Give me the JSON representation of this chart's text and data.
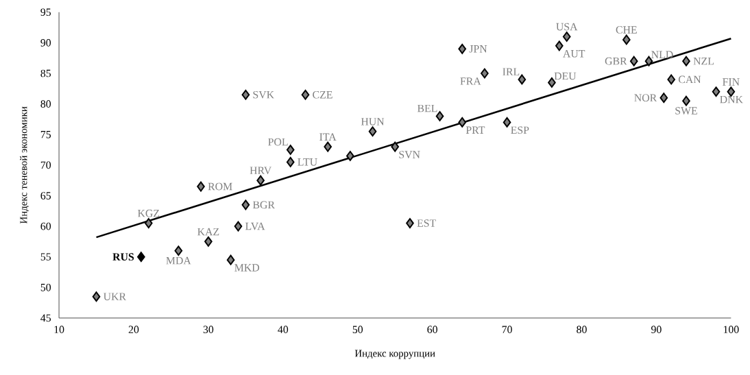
{
  "chart_data": {
    "type": "scatter",
    "marker": "diamond",
    "xlabel": "Индекс коррупции",
    "ylabel": "Индекс теневой экономики",
    "xlim": [
      10,
      100
    ],
    "ylim": [
      45,
      95
    ],
    "xticks": [
      10,
      20,
      30,
      40,
      50,
      60,
      70,
      80,
      90,
      100
    ],
    "yticks": [
      45,
      50,
      55,
      60,
      65,
      70,
      75,
      80,
      85,
      90,
      95
    ],
    "series": [
      {
        "color": "#7f7f7f",
        "x": [
          15,
          22,
          26,
          30,
          29,
          37,
          35,
          34,
          33,
          35,
          43,
          41,
          41,
          46,
          49,
          52,
          55,
          57,
          61,
          64,
          64,
          67,
          70,
          72,
          76,
          77,
          78,
          86,
          87,
          89,
          94,
          92,
          91,
          94,
          98,
          100
        ],
        "values": [
          48.5,
          60.5,
          56,
          57.5,
          66.5,
          67.5,
          63.5,
          60,
          54.5,
          81.5,
          81.5,
          72.5,
          70.5,
          73,
          71.5,
          75.5,
          73,
          60.5,
          78,
          77,
          89,
          85,
          77,
          84,
          83.5,
          89.5,
          91,
          90.5,
          87,
          87,
          87,
          84,
          81,
          80.5,
          82,
          82
        ],
        "value_labels": [
          "UKR",
          "KGZ",
          "MDA",
          "KAZ",
          "ROM",
          "HRV",
          "BGR",
          "LVA",
          "MKD",
          "SVK",
          "CZE",
          "POL",
          "LTU",
          "ITA",
          null,
          "HUN",
          "SVN",
          "EST",
          "BEL",
          "PRT",
          "JPN",
          "FRA",
          "ESP",
          "IRL",
          "DEU",
          "AUT",
          "USA",
          "CHE",
          "GBR",
          "NLD",
          "NZL",
          "CAN",
          "NOR",
          "SWE",
          "DNK",
          "FIN"
        ]
      },
      {
        "color": "#000000",
        "x": [
          21
        ],
        "values": [
          55
        ],
        "value_labels": [
          "**RUS**"
        ]
      },
      {
        "type": "line",
        "marker": "none",
        "color": "#000000",
        "x": [
          15,
          100
        ],
        "values": [
          58.2,
          90.7
        ]
      }
    ]
  }
}
